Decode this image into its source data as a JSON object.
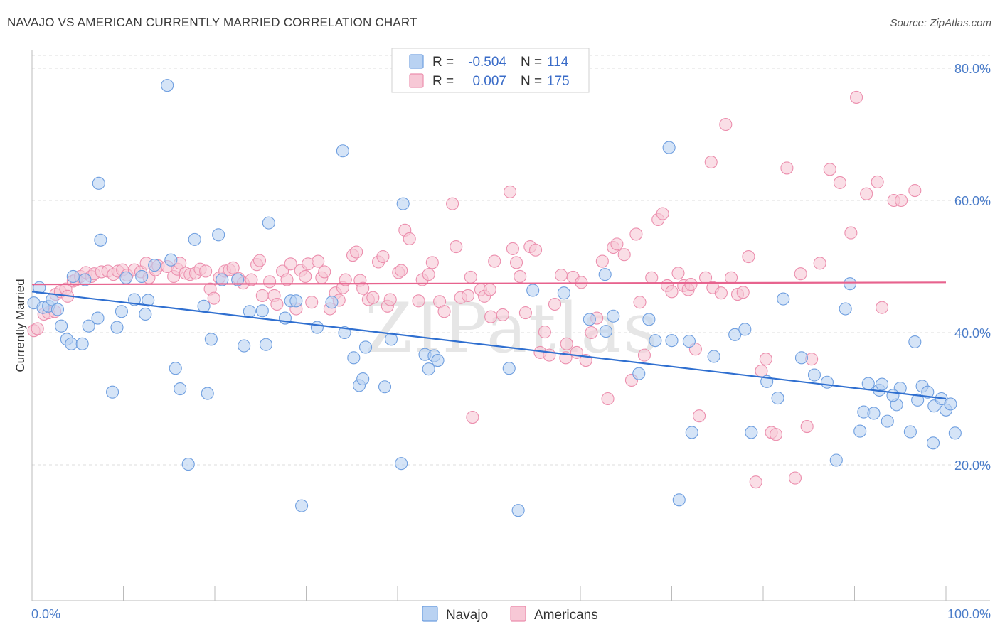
{
  "title": "NAVAJO VS AMERICAN CURRENTLY MARRIED CORRELATION CHART",
  "source": "Source: ZipAtlas.com",
  "watermark": "ZIPatlas",
  "colors": {
    "navajo_fill": "#b9d2f2",
    "navajo_stroke": "#6f9fe0",
    "navajo_line": "#2f6fd0",
    "americans_fill": "#f7c8d6",
    "americans_stroke": "#ec8fae",
    "americans_line": "#e7638e",
    "tick_text": "#4a7cc9",
    "grid": "#dcdcdc"
  },
  "legend": {
    "r_label": "R =",
    "n_label": "N =",
    "rows": [
      {
        "series": "Navajo",
        "r": "-0.504",
        "n": "114"
      },
      {
        "series": "Americans",
        "r": "0.007",
        "n": "175"
      }
    ]
  },
  "chart_data": {
    "type": "scatter",
    "title": "NAVAJO VS AMERICAN CURRENTLY MARRIED CORRELATION CHART",
    "xlabel": "",
    "ylabel": "Currently Married",
    "xlim": [
      0,
      100
    ],
    "ylim": [
      2,
      82
    ],
    "x_tick_labels": [
      "0.0%",
      "100.0%"
    ],
    "y_ticks": [
      20,
      40,
      60,
      80
    ],
    "y_tick_labels": [
      "20.0%",
      "40.0%",
      "60.0%",
      "80.0%"
    ],
    "grid": true,
    "legend_position": "top-center",
    "series": [
      {
        "name": "Navajo",
        "trend": [
          [
            0,
            46.2
          ],
          [
            100,
            30.0
          ]
        ],
        "points": [
          [
            0.2,
            44.5
          ],
          [
            0.8,
            46.8
          ],
          [
            1.2,
            43.8
          ],
          [
            1.8,
            44.0
          ],
          [
            2.2,
            45.0
          ],
          [
            2.8,
            43.5
          ],
          [
            3.2,
            41.0
          ],
          [
            3.8,
            39.0
          ],
          [
            4.3,
            38.3
          ],
          [
            5.5,
            38.3
          ],
          [
            6.2,
            41.0
          ],
          [
            4.5,
            48.5
          ],
          [
            5.8,
            48.0
          ],
          [
            7.2,
            42.2
          ],
          [
            7.5,
            54.0
          ],
          [
            7.3,
            62.6
          ],
          [
            8.8,
            31.0
          ],
          [
            9.3,
            40.8
          ],
          [
            9.8,
            43.2
          ],
          [
            10.3,
            48.3
          ],
          [
            11.2,
            45.0
          ],
          [
            12.0,
            48.5
          ],
          [
            12.4,
            42.8
          ],
          [
            12.7,
            44.9
          ],
          [
            13.4,
            50.2
          ],
          [
            14.8,
            77.4
          ],
          [
            15.2,
            51.0
          ],
          [
            15.7,
            34.6
          ],
          [
            16.2,
            31.5
          ],
          [
            17.1,
            20.1
          ],
          [
            17.8,
            54.1
          ],
          [
            18.8,
            44.0
          ],
          [
            19.2,
            30.8
          ],
          [
            19.6,
            39.0
          ],
          [
            20.4,
            54.8
          ],
          [
            20.8,
            48.0
          ],
          [
            22.5,
            48.0
          ],
          [
            23.2,
            38.0
          ],
          [
            23.8,
            43.2
          ],
          [
            25.2,
            43.3
          ],
          [
            25.6,
            38.2
          ],
          [
            25.9,
            56.6
          ],
          [
            27.7,
            42.2
          ],
          [
            28.3,
            44.8
          ],
          [
            28.9,
            44.8
          ],
          [
            29.5,
            13.8
          ],
          [
            31.2,
            40.8
          ],
          [
            32.8,
            44.6
          ],
          [
            34.0,
            67.5
          ],
          [
            34.2,
            40.0
          ],
          [
            35.2,
            36.2
          ],
          [
            35.8,
            32.0
          ],
          [
            36.2,
            33.0
          ],
          [
            36.5,
            37.8
          ],
          [
            38.6,
            31.8
          ],
          [
            39.3,
            39.0
          ],
          [
            40.4,
            20.2
          ],
          [
            40.6,
            59.5
          ],
          [
            43.0,
            36.7
          ],
          [
            43.4,
            34.5
          ],
          [
            44.0,
            36.5
          ],
          [
            44.4,
            35.8
          ],
          [
            52.2,
            34.6
          ],
          [
            53.2,
            13.1
          ],
          [
            54.8,
            46.4
          ],
          [
            58.2,
            46.0
          ],
          [
            61.0,
            42.0
          ],
          [
            62.7,
            48.8
          ],
          [
            62.8,
            40.2
          ],
          [
            63.6,
            42.5
          ],
          [
            66.4,
            33.8
          ],
          [
            67.5,
            42.0
          ],
          [
            68.2,
            38.8
          ],
          [
            69.7,
            68.0
          ],
          [
            70.0,
            38.8
          ],
          [
            70.8,
            14.7
          ],
          [
            71.9,
            38.7
          ],
          [
            72.2,
            24.9
          ],
          [
            74.6,
            36.4
          ],
          [
            76.9,
            39.7
          ],
          [
            78.0,
            40.5
          ],
          [
            78.7,
            24.9
          ],
          [
            80.4,
            32.6
          ],
          [
            81.6,
            30.1
          ],
          [
            82.2,
            45.1
          ],
          [
            84.2,
            36.2
          ],
          [
            85.6,
            33.6
          ],
          [
            87.0,
            32.5
          ],
          [
            88.0,
            20.7
          ],
          [
            89.0,
            43.6
          ],
          [
            89.5,
            47.4
          ],
          [
            90.6,
            25.1
          ],
          [
            91.0,
            28.0
          ],
          [
            91.5,
            32.3
          ],
          [
            92.1,
            27.8
          ],
          [
            92.7,
            31.3
          ],
          [
            93.0,
            32.2
          ],
          [
            93.6,
            26.6
          ],
          [
            94.6,
            29.1
          ],
          [
            95.0,
            31.6
          ],
          [
            94.2,
            30.5
          ],
          [
            96.1,
            25.0
          ],
          [
            96.6,
            38.6
          ],
          [
            96.9,
            29.8
          ],
          [
            97.4,
            31.9
          ],
          [
            98.0,
            31.0
          ],
          [
            98.6,
            23.3
          ],
          [
            98.7,
            28.9
          ],
          [
            99.5,
            30.0
          ],
          [
            100.0,
            28.3
          ],
          [
            100.5,
            29.2
          ],
          [
            101.0,
            24.8
          ]
        ]
      },
      {
        "name": "Americans",
        "trend": [
          [
            0,
            47.3
          ],
          [
            100,
            47.6
          ]
        ],
        "points": [
          [
            0.2,
            40.3
          ],
          [
            0.6,
            40.6
          ],
          [
            1.3,
            42.8
          ],
          [
            1.8,
            43.0
          ],
          [
            2.5,
            43.2
          ],
          [
            2.6,
            45.8
          ],
          [
            3.1,
            46.2
          ],
          [
            3.7,
            46.6
          ],
          [
            3.9,
            45.5
          ],
          [
            4.5,
            47.8
          ],
          [
            4.8,
            48.0
          ],
          [
            5.3,
            48.5
          ],
          [
            5.9,
            49.1
          ],
          [
            6.5,
            48.5
          ],
          [
            6.8,
            48.9
          ],
          [
            7.6,
            49.2
          ],
          [
            8.3,
            49.3
          ],
          [
            8.9,
            48.8
          ],
          [
            9.4,
            49.3
          ],
          [
            9.9,
            49.5
          ],
          [
            10.4,
            48.7
          ],
          [
            11.2,
            49.5
          ],
          [
            11.9,
            49.2
          ],
          [
            12.5,
            50.5
          ],
          [
            12.8,
            48.3
          ],
          [
            13.5,
            49.5
          ],
          [
            13.8,
            50.1
          ],
          [
            14.8,
            50.0
          ],
          [
            15.5,
            48.5
          ],
          [
            15.9,
            49.6
          ],
          [
            16.2,
            50.5
          ],
          [
            16.8,
            49.0
          ],
          [
            17.3,
            48.8
          ],
          [
            17.9,
            49.0
          ],
          [
            18.4,
            49.6
          ],
          [
            19.0,
            49.3
          ],
          [
            19.5,
            46.6
          ],
          [
            19.9,
            45.2
          ],
          [
            20.5,
            48.3
          ],
          [
            21.1,
            49.3
          ],
          [
            21.6,
            49.5
          ],
          [
            22.0,
            49.8
          ],
          [
            22.6,
            48.2
          ],
          [
            23.1,
            47.5
          ],
          [
            24.0,
            48.0
          ],
          [
            24.6,
            50.3
          ],
          [
            24.9,
            50.9
          ],
          [
            25.2,
            45.6
          ],
          [
            26.0,
            47.7
          ],
          [
            26.5,
            45.6
          ],
          [
            26.8,
            44.3
          ],
          [
            27.4,
            49.3
          ],
          [
            27.9,
            48.0
          ],
          [
            28.3,
            50.4
          ],
          [
            28.9,
            43.6
          ],
          [
            29.4,
            49.4
          ],
          [
            29.9,
            48.5
          ],
          [
            30.2,
            50.4
          ],
          [
            30.6,
            44.6
          ],
          [
            31.3,
            50.8
          ],
          [
            31.7,
            48.3
          ],
          [
            32.0,
            49.2
          ],
          [
            32.6,
            43.6
          ],
          [
            33.2,
            46.0
          ],
          [
            33.6,
            44.9
          ],
          [
            34.0,
            46.8
          ],
          [
            34.3,
            48.0
          ],
          [
            35.1,
            51.7
          ],
          [
            35.5,
            52.2
          ],
          [
            35.9,
            47.9
          ],
          [
            36.2,
            46.7
          ],
          [
            36.8,
            45.0
          ],
          [
            37.3,
            45.3
          ],
          [
            37.9,
            50.7
          ],
          [
            38.4,
            51.5
          ],
          [
            38.9,
            44.0
          ],
          [
            39.2,
            45.0
          ],
          [
            40.1,
            49.1
          ],
          [
            40.4,
            49.4
          ],
          [
            40.8,
            55.5
          ],
          [
            41.3,
            54.2
          ],
          [
            42.3,
            44.8
          ],
          [
            42.7,
            48.0
          ],
          [
            43.4,
            48.8
          ],
          [
            43.8,
            50.6
          ],
          [
            44.6,
            44.7
          ],
          [
            45.1,
            43.2
          ],
          [
            46.0,
            59.5
          ],
          [
            46.4,
            53.0
          ],
          [
            46.9,
            45.3
          ],
          [
            47.7,
            45.6
          ],
          [
            48.0,
            48.4
          ],
          [
            48.2,
            27.2
          ],
          [
            49.1,
            46.5
          ],
          [
            49.5,
            45.5
          ],
          [
            50.1,
            46.5
          ],
          [
            50.6,
            50.8
          ],
          [
            51.5,
            42.7
          ],
          [
            52.3,
            61.3
          ],
          [
            52.6,
            52.7
          ],
          [
            53.0,
            50.6
          ],
          [
            53.4,
            48.5
          ],
          [
            54.0,
            43.0
          ],
          [
            54.5,
            53.0
          ],
          [
            55.1,
            52.5
          ],
          [
            55.6,
            37.0
          ],
          [
            56.1,
            40.1
          ],
          [
            56.6,
            36.6
          ],
          [
            57.2,
            44.3
          ],
          [
            57.9,
            48.7
          ],
          [
            58.5,
            38.3
          ],
          [
            59.2,
            48.4
          ],
          [
            59.6,
            37.0
          ],
          [
            60.1,
            47.6
          ],
          [
            60.6,
            35.8
          ],
          [
            61.2,
            40.0
          ],
          [
            61.8,
            42.2
          ],
          [
            62.4,
            50.8
          ],
          [
            63.0,
            30.0
          ],
          [
            63.6,
            52.9
          ],
          [
            64.0,
            53.4
          ],
          [
            64.8,
            51.8
          ],
          [
            65.6,
            32.8
          ],
          [
            66.1,
            54.9
          ],
          [
            66.5,
            44.6
          ],
          [
            67.0,
            36.6
          ],
          [
            67.8,
            48.3
          ],
          [
            68.5,
            57.1
          ],
          [
            69.0,
            58.0
          ],
          [
            69.5,
            47.1
          ],
          [
            70.0,
            46.2
          ],
          [
            70.7,
            49.0
          ],
          [
            71.3,
            47.1
          ],
          [
            71.8,
            46.5
          ],
          [
            72.1,
            47.3
          ],
          [
            72.6,
            37.5
          ],
          [
            73.0,
            27.4
          ],
          [
            73.7,
            48.3
          ],
          [
            74.3,
            65.8
          ],
          [
            74.5,
            46.8
          ],
          [
            75.4,
            46.0
          ],
          [
            75.9,
            71.5
          ],
          [
            76.5,
            48.3
          ],
          [
            77.2,
            45.8
          ],
          [
            77.8,
            46.1
          ],
          [
            78.4,
            51.5
          ],
          [
            79.2,
            17.4
          ],
          [
            79.8,
            34.2
          ],
          [
            80.3,
            36.0
          ],
          [
            80.9,
            24.9
          ],
          [
            81.4,
            24.6
          ],
          [
            82.6,
            64.9
          ],
          [
            83.5,
            18.0
          ],
          [
            84.1,
            48.9
          ],
          [
            84.8,
            25.8
          ],
          [
            85.3,
            36.0
          ],
          [
            86.2,
            50.5
          ],
          [
            87.3,
            64.7
          ],
          [
            88.4,
            62.7
          ],
          [
            89.6,
            55.1
          ],
          [
            90.2,
            75.6
          ],
          [
            91.3,
            61.0
          ],
          [
            92.5,
            62.8
          ],
          [
            93.0,
            43.8
          ],
          [
            94.3,
            60.0
          ],
          [
            95.1,
            60.0
          ],
          [
            96.6,
            61.5
          ],
          [
            58.4,
            36.2
          ],
          [
            50.2,
            42.4
          ]
        ]
      }
    ]
  },
  "bottom_legend": [
    {
      "series": "Navajo",
      "label": "Navajo"
    },
    {
      "series": "Americans",
      "label": "Americans"
    }
  ]
}
